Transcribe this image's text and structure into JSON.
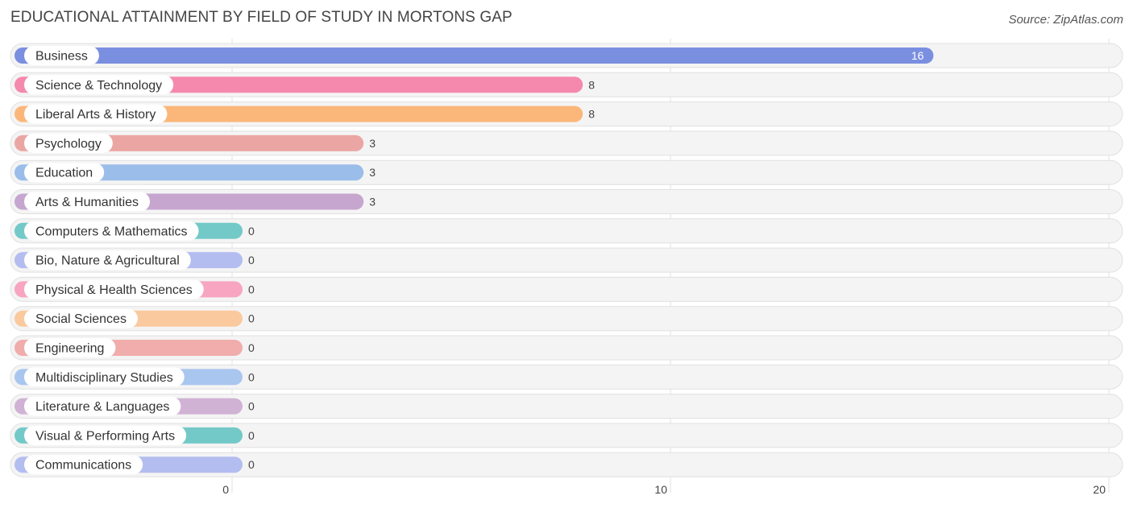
{
  "header": {
    "title": "EDUCATIONAL ATTAINMENT BY FIELD OF STUDY IN MORTONS GAP",
    "source": "Source: ZipAtlas.com"
  },
  "chart_data": {
    "type": "bar",
    "orientation": "horizontal",
    "title": "EDUCATIONAL ATTAINMENT BY FIELD OF STUDY IN MORTONS GAP",
    "xlabel": "",
    "ylabel": "",
    "xlim": [
      0,
      20
    ],
    "ticks": [
      0,
      10,
      20
    ],
    "tick_labels": [
      "0",
      "10",
      "20"
    ],
    "grid": true,
    "categories": [
      "Business",
      "Science & Technology",
      "Liberal Arts & History",
      "Psychology",
      "Education",
      "Arts & Humanities",
      "Computers & Mathematics",
      "Bio, Nature & Agricultural",
      "Physical & Health Sciences",
      "Social Sciences",
      "Engineering",
      "Multidisciplinary Studies",
      "Literature & Languages",
      "Visual & Performing Arts",
      "Communications"
    ],
    "values": [
      16,
      8,
      8,
      3,
      3,
      3,
      0,
      0,
      0,
      0,
      0,
      0,
      0,
      0,
      0
    ],
    "value_labels": [
      "16",
      "8",
      "8",
      "3",
      "3",
      "3",
      "0",
      "0",
      "0",
      "0",
      "0",
      "0",
      "0",
      "0",
      "0"
    ],
    "colors": [
      "#7b8fe0",
      "#f589ad",
      "#fbb779",
      "#eba6a4",
      "#9bbde9",
      "#c6a6cf",
      "#73c9c8",
      "#b3bdef",
      "#f7a5c1",
      "#fac99d",
      "#f0adab",
      "#a9c6ef",
      "#d0b2d5",
      "#73c9c8",
      "#b3bdef"
    ]
  }
}
